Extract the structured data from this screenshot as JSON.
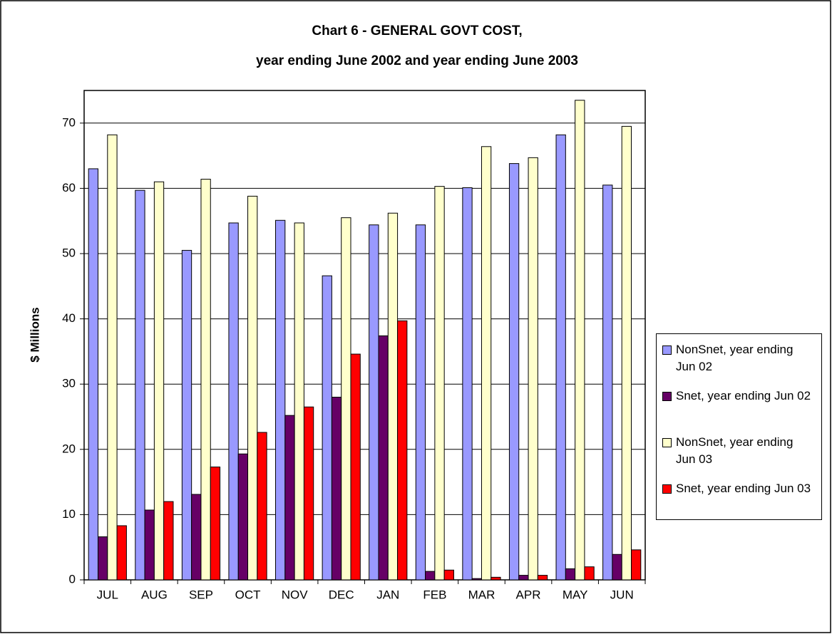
{
  "chart_data": {
    "type": "bar",
    "title": [
      "Chart 6 - GENERAL GOVT COST,",
      "year ending June 2002 and year ending June 2003"
    ],
    "y_label": "$ Millions",
    "categories": [
      "JUL",
      "AUG",
      "SEP",
      "OCT",
      "NOV",
      "DEC",
      "JAN",
      "FEB",
      "MAR",
      "APR",
      "MAY",
      "JUN"
    ],
    "series": [
      {
        "name": "NonSnet, year ending Jun 02",
        "color": "#9999ff",
        "values": [
          63.0,
          59.7,
          50.5,
          54.7,
          55.1,
          46.6,
          54.4,
          54.4,
          60.1,
          63.8,
          68.2,
          60.5
        ]
      },
      {
        "name": "Snet, year ending Jun 02",
        "color": "#660066",
        "values": [
          6.6,
          10.7,
          13.1,
          19.3,
          25.2,
          28.0,
          37.4,
          1.3,
          0.2,
          0.7,
          1.7,
          3.9
        ]
      },
      {
        "name": "NonSnet, year ending Jun 03",
        "color": "#ffffcc",
        "values": [
          68.2,
          61.0,
          61.4,
          58.8,
          54.7,
          55.5,
          56.2,
          60.3,
          66.4,
          64.7,
          73.5,
          69.5
        ]
      },
      {
        "name": "Snet, year ending Jun 03",
        "color": "#ff0000",
        "values": [
          8.3,
          12.0,
          17.3,
          22.6,
          26.5,
          34.6,
          39.7,
          1.5,
          0.4,
          0.7,
          2.0,
          4.6
        ]
      }
    ],
    "ylim": [
      0,
      75
    ],
    "yticks": [
      0,
      10,
      20,
      30,
      40,
      50,
      60,
      70
    ],
    "grid": true,
    "legend": "right"
  }
}
